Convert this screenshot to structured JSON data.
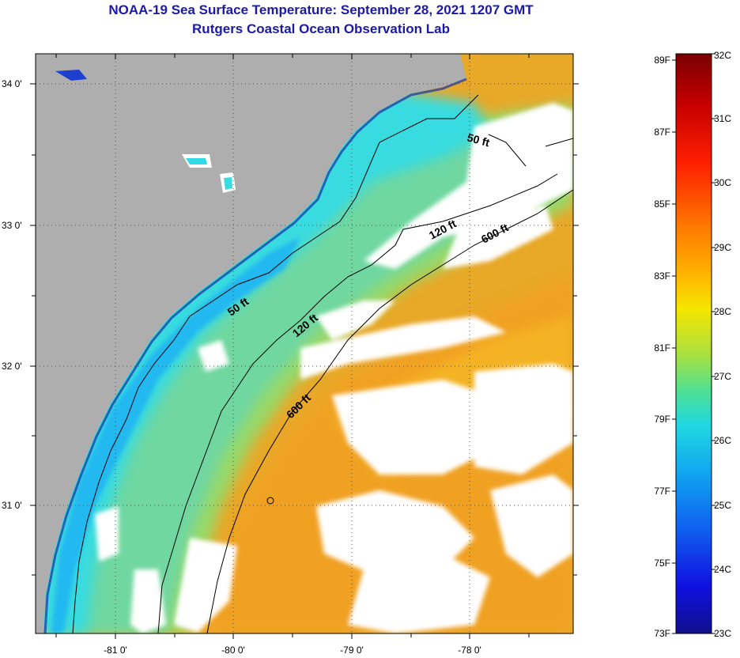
{
  "header": {
    "title": "NOAA-19 Sea Surface Temperature:  September 28, 2021 1207 GMT",
    "subtitle": "Rutgers Coastal Ocean Observation Lab"
  },
  "map": {
    "lon_ticks": [
      "-81 0'",
      "-80 0'",
      "-79 0'",
      "-78 0'"
    ],
    "lat_ticks": [
      "34 0'",
      "33 0'",
      "32 0'",
      "31 0'"
    ],
    "contours": [
      {
        "label": "50 ft"
      },
      {
        "label": "50 ft"
      },
      {
        "label": "120 ft"
      },
      {
        "label": "120 ft"
      },
      {
        "label": "600 ft"
      },
      {
        "label": "600 ft"
      }
    ],
    "colors": {
      "land": "#aeaeae",
      "cloud": "#ffffff",
      "coastal_water": "#32d9e6",
      "shelf_water": "#7be08a",
      "offshore_water": "#f0a020",
      "grid": "#555555",
      "title": "#1a1aa6"
    }
  },
  "colorbar": {
    "fahrenheit_labels": [
      "89F",
      "87F",
      "85F",
      "83F",
      "81F",
      "79F",
      "77F",
      "75F",
      "73F"
    ],
    "celsius_labels": [
      "32C",
      "31C",
      "30C",
      "29C",
      "28C",
      "27C",
      "26C",
      "25C",
      "24C",
      "23C"
    ],
    "gradient": [
      "#7a0000",
      "#c80000",
      "#ff2000",
      "#ff7a00",
      "#ffb400",
      "#f5e600",
      "#a8e040",
      "#50e090",
      "#20d8e0",
      "#10a8f0",
      "#1060f0",
      "#1010e0",
      "#10108c"
    ]
  }
}
